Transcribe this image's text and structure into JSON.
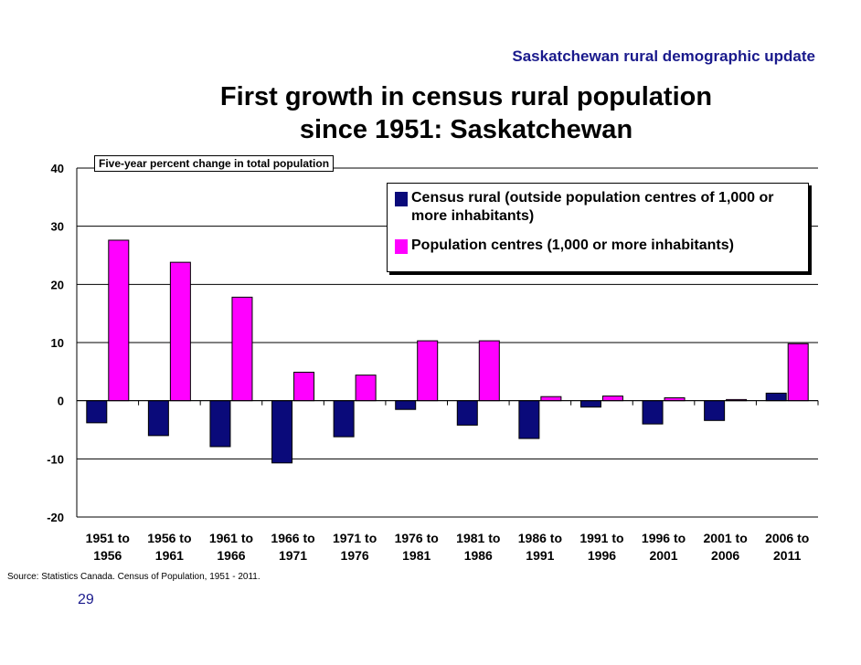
{
  "header": "Saskatchewan rural demographic update",
  "title_lines": [
    "First growth in census rural population",
    "since 1951: Saskatchewan"
  ],
  "source": "Source:  Statistics Canada.  Census of Population, 1951 - 2011.",
  "page_number": "29",
  "chart_data": {
    "type": "bar",
    "subtitle": "Five-year percent change in total population",
    "categories": [
      [
        "1951 to",
        "1956"
      ],
      [
        "1956 to",
        "1961"
      ],
      [
        "1961 to",
        "1966"
      ],
      [
        "1966 to",
        "1971"
      ],
      [
        "1971 to",
        "1976"
      ],
      [
        "1976 to",
        "1981"
      ],
      [
        "1981 to",
        "1986"
      ],
      [
        "1986 to",
        "1991"
      ],
      [
        "1991 to",
        "1996"
      ],
      [
        "1996 to",
        "2001"
      ],
      [
        "2001 to",
        "2006"
      ],
      [
        "2006 to",
        "2011"
      ]
    ],
    "series": [
      {
        "name": "Census rural (outside population centres of 1,000 or more inhabitants)",
        "color": "#0a0a7a",
        "values": [
          -3.8,
          -6.0,
          -7.9,
          -10.7,
          -6.2,
          -1.5,
          -4.2,
          -6.5,
          -1.1,
          -4.0,
          -3.4,
          1.3
        ]
      },
      {
        "name": "Population centres (1,000 or more inhabitants)",
        "color": "#ff00ff",
        "values": [
          27.6,
          23.8,
          17.8,
          4.9,
          4.4,
          10.3,
          10.3,
          0.7,
          0.8,
          0.5,
          0.2,
          9.8
        ]
      }
    ],
    "legend": [
      {
        "label": "Census rural (outside population centres of 1,000 or more inhabitants)",
        "color": "#0a0a7a"
      },
      {
        "label": "Population centres (1,000 or more inhabitants)",
        "color": "#ff00ff"
      }
    ],
    "ylim": [
      -20,
      40
    ],
    "yticks": [
      40,
      30,
      20,
      10,
      0,
      -10,
      -20
    ],
    "grid": true,
    "legend_position": "top-right"
  }
}
